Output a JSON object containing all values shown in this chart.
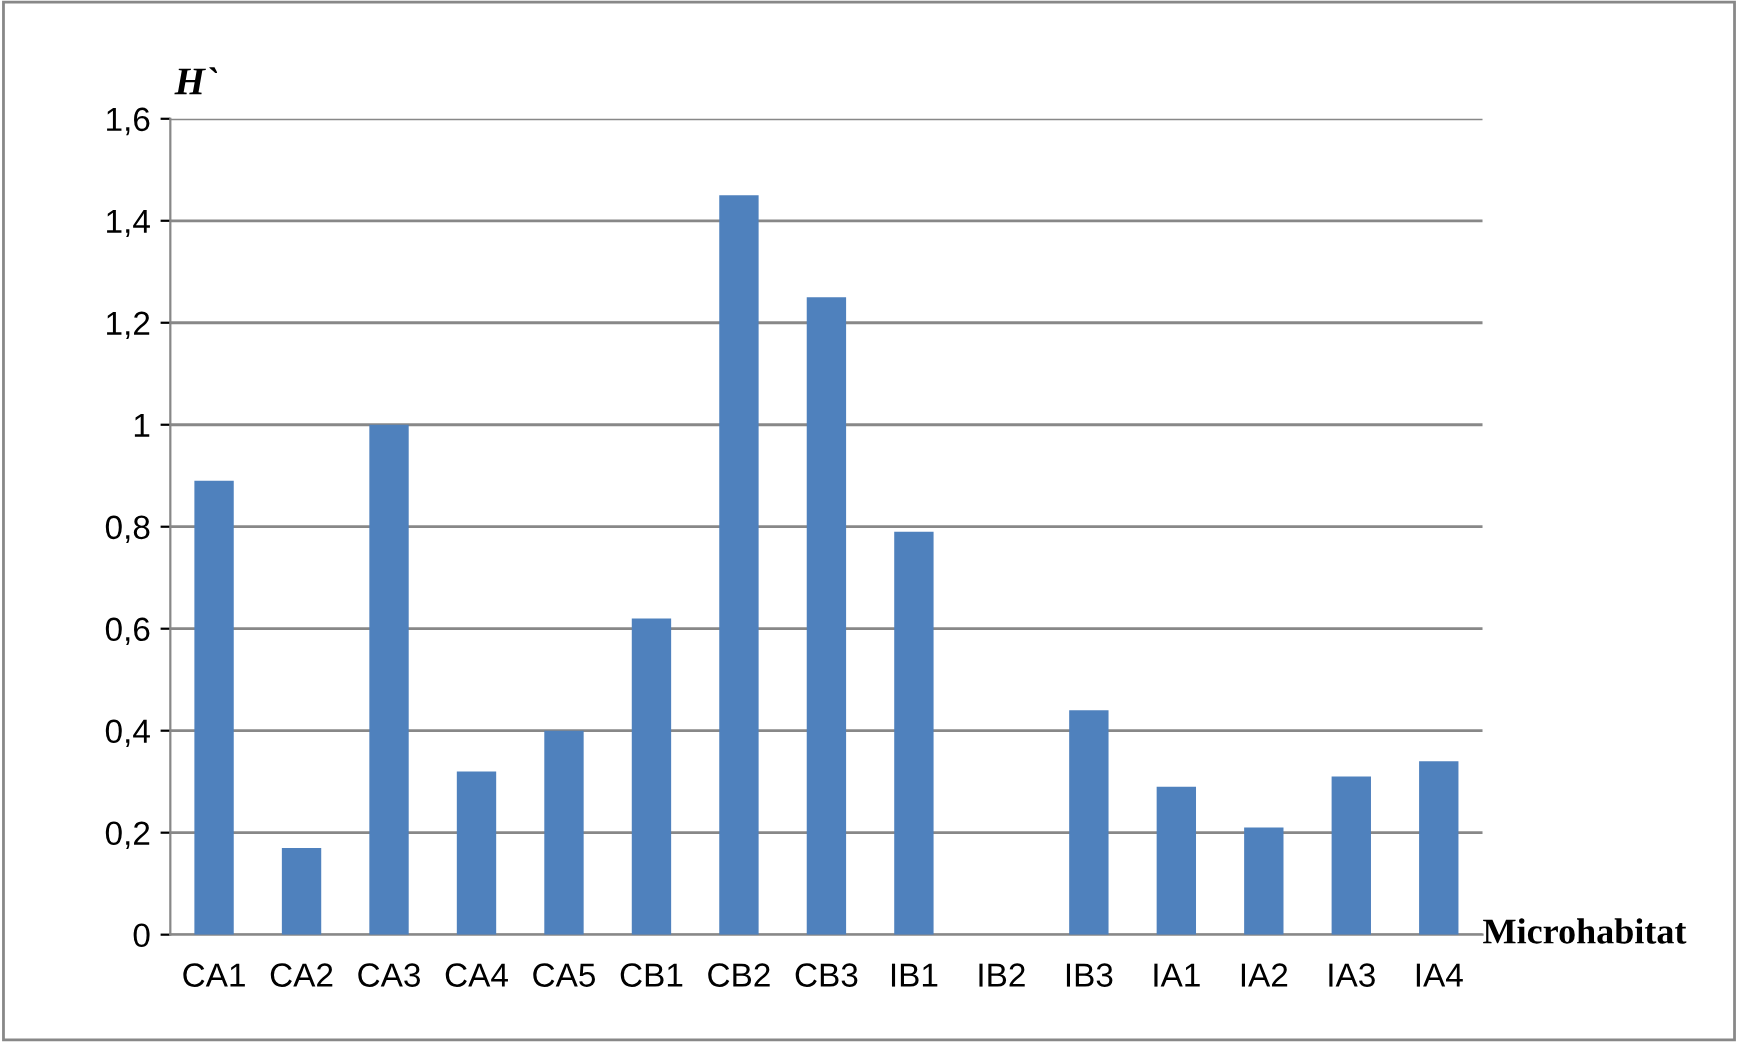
{
  "chart_data": {
    "type": "bar",
    "ylabel": "H`",
    "xlabel": "Microhabitat",
    "categories": [
      "CA1",
      "CA2",
      "CA3",
      "CA4",
      "CA5",
      "CB1",
      "CB2",
      "CB3",
      "IB1",
      "IB2",
      "IB3",
      "IA1",
      "IA2",
      "IA3",
      "IA4"
    ],
    "values": [
      0.89,
      0.17,
      1.0,
      0.32,
      0.4,
      0.62,
      1.45,
      1.25,
      0.79,
      0,
      0.44,
      0.29,
      0.21,
      0.31,
      0.34
    ],
    "color": "#4f81bd",
    "ylim": [
      0,
      1.6
    ],
    "yticks": [
      {
        "value": 0,
        "label": "0"
      },
      {
        "value": 0.2,
        "label": "0,2"
      },
      {
        "value": 0.4,
        "label": "0,4"
      },
      {
        "value": 0.6,
        "label": "0,6"
      },
      {
        "value": 0.8,
        "label": "0,8"
      },
      {
        "value": 1,
        "label": "1"
      },
      {
        "value": 1.2,
        "label": "1,2"
      },
      {
        "value": 1.4,
        "label": "1,4"
      },
      {
        "value": 1.6,
        "label": "1,6"
      }
    ],
    "grid": "y"
  }
}
